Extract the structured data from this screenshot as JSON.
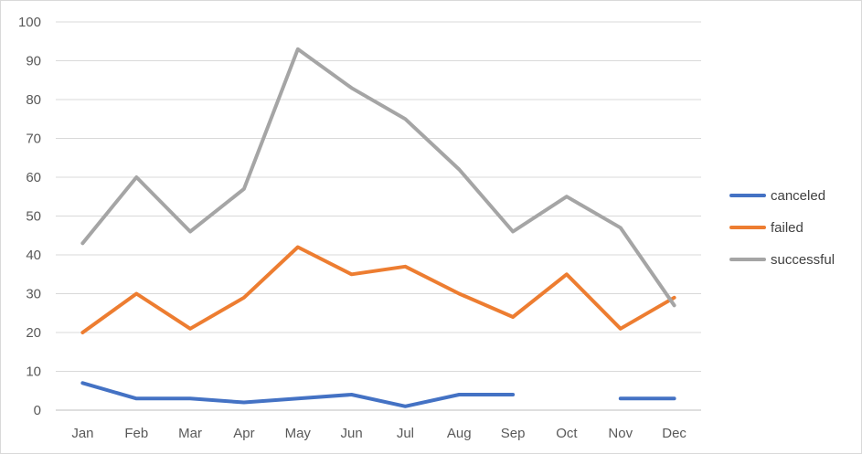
{
  "chart_data": {
    "type": "line",
    "title": "",
    "xlabel": "",
    "ylabel": "",
    "categories": [
      "Jan",
      "Feb",
      "Mar",
      "Apr",
      "May",
      "Jun",
      "Jul",
      "Aug",
      "Sep",
      "Oct",
      "Nov",
      "Dec"
    ],
    "ylim": [
      0,
      100
    ],
    "yticks": [
      "0",
      "10",
      "20",
      "30",
      "40",
      "50",
      "60",
      "70",
      "80",
      "90",
      "100"
    ],
    "grid": true,
    "legend_position": "right",
    "series": [
      {
        "name": "canceled",
        "color": "#4472C4",
        "values": [
          7,
          3,
          3,
          2,
          3,
          4,
          1,
          4,
          4,
          null,
          3,
          3
        ]
      },
      {
        "name": "failed",
        "color": "#ED7D31",
        "values": [
          20,
          30,
          21,
          29,
          42,
          35,
          37,
          30,
          24,
          35,
          21,
          29
        ]
      },
      {
        "name": "successful",
        "color": "#A5A5A5",
        "values": [
          43,
          60,
          46,
          57,
          93,
          83,
          75,
          62,
          46,
          55,
          47,
          27
        ]
      }
    ]
  }
}
